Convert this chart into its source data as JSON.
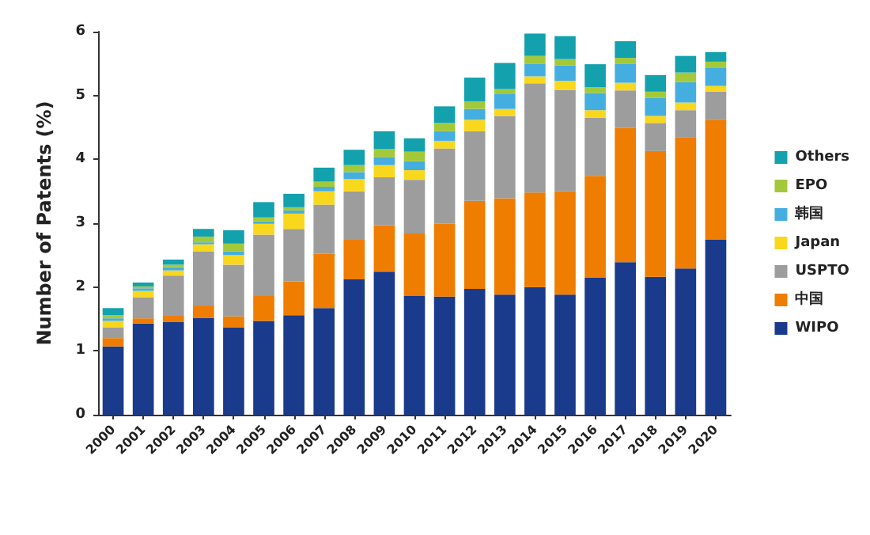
{
  "chart_data": {
    "type": "bar",
    "stacked": true,
    "ylabel": "Number of Patents (%)",
    "categories": [
      "2000",
      "2001",
      "2002",
      "2003",
      "2004",
      "2005",
      "2006",
      "2007",
      "2008",
      "2009",
      "2010",
      "2011",
      "2012",
      "2013",
      "2014",
      "2015",
      "2016",
      "2017",
      "2018",
      "2019",
      "2020"
    ],
    "series": [
      {
        "name": "WIPO",
        "color": "#1a3a8c",
        "values": [
          1.07,
          1.43,
          1.45,
          1.52,
          1.37,
          1.47,
          1.56,
          1.67,
          2.12,
          2.24,
          1.86,
          1.85,
          1.97,
          1.88,
          2.0,
          1.88,
          2.15,
          2.39,
          2.16,
          2.29,
          2.74
        ]
      },
      {
        "name": "中国",
        "color": "#ee7d00",
        "values": [
          0.13,
          0.08,
          0.11,
          0.19,
          0.17,
          0.39,
          0.53,
          0.85,
          0.62,
          0.73,
          0.98,
          1.14,
          1.38,
          1.51,
          1.48,
          1.62,
          1.59,
          2.1,
          1.97,
          2.05,
          1.88
        ]
      },
      {
        "name": "USPTO",
        "color": "#9d9d9d",
        "values": [
          0.17,
          0.33,
          0.62,
          0.85,
          0.81,
          0.96,
          0.82,
          0.77,
          0.76,
          0.75,
          0.84,
          1.18,
          1.09,
          1.29,
          1.71,
          1.59,
          0.91,
          0.59,
          0.44,
          0.43,
          0.44
        ]
      },
      {
        "name": "Japan",
        "color": "#f9d71c",
        "values": [
          0.1,
          0.1,
          0.08,
          0.11,
          0.15,
          0.17,
          0.24,
          0.21,
          0.19,
          0.19,
          0.15,
          0.12,
          0.18,
          0.11,
          0.11,
          0.14,
          0.12,
          0.12,
          0.11,
          0.12,
          0.09
        ]
      },
      {
        "name": "韩国",
        "color": "#45aee0",
        "values": [
          0.04,
          0.04,
          0.05,
          0.03,
          0.06,
          0.04,
          0.05,
          0.07,
          0.11,
          0.12,
          0.14,
          0.15,
          0.17,
          0.24,
          0.2,
          0.24,
          0.27,
          0.3,
          0.28,
          0.32,
          0.28
        ]
      },
      {
        "name": "EPO",
        "color": "#a3c93a",
        "values": [
          0.05,
          0.03,
          0.04,
          0.09,
          0.12,
          0.06,
          0.05,
          0.08,
          0.11,
          0.13,
          0.15,
          0.13,
          0.12,
          0.07,
          0.12,
          0.1,
          0.09,
          0.09,
          0.1,
          0.15,
          0.1
        ]
      },
      {
        "name": "Others",
        "color": "#12a1ad",
        "values": [
          0.11,
          0.06,
          0.08,
          0.12,
          0.21,
          0.24,
          0.21,
          0.22,
          0.24,
          0.28,
          0.21,
          0.26,
          0.37,
          0.41,
          0.35,
          0.36,
          0.36,
          0.26,
          0.26,
          0.26,
          0.15
        ]
      }
    ],
    "ylim": [
      0,
      6
    ],
    "yticks": [
      0,
      1,
      2,
      3,
      4,
      5,
      6
    ],
    "legend": "right"
  }
}
